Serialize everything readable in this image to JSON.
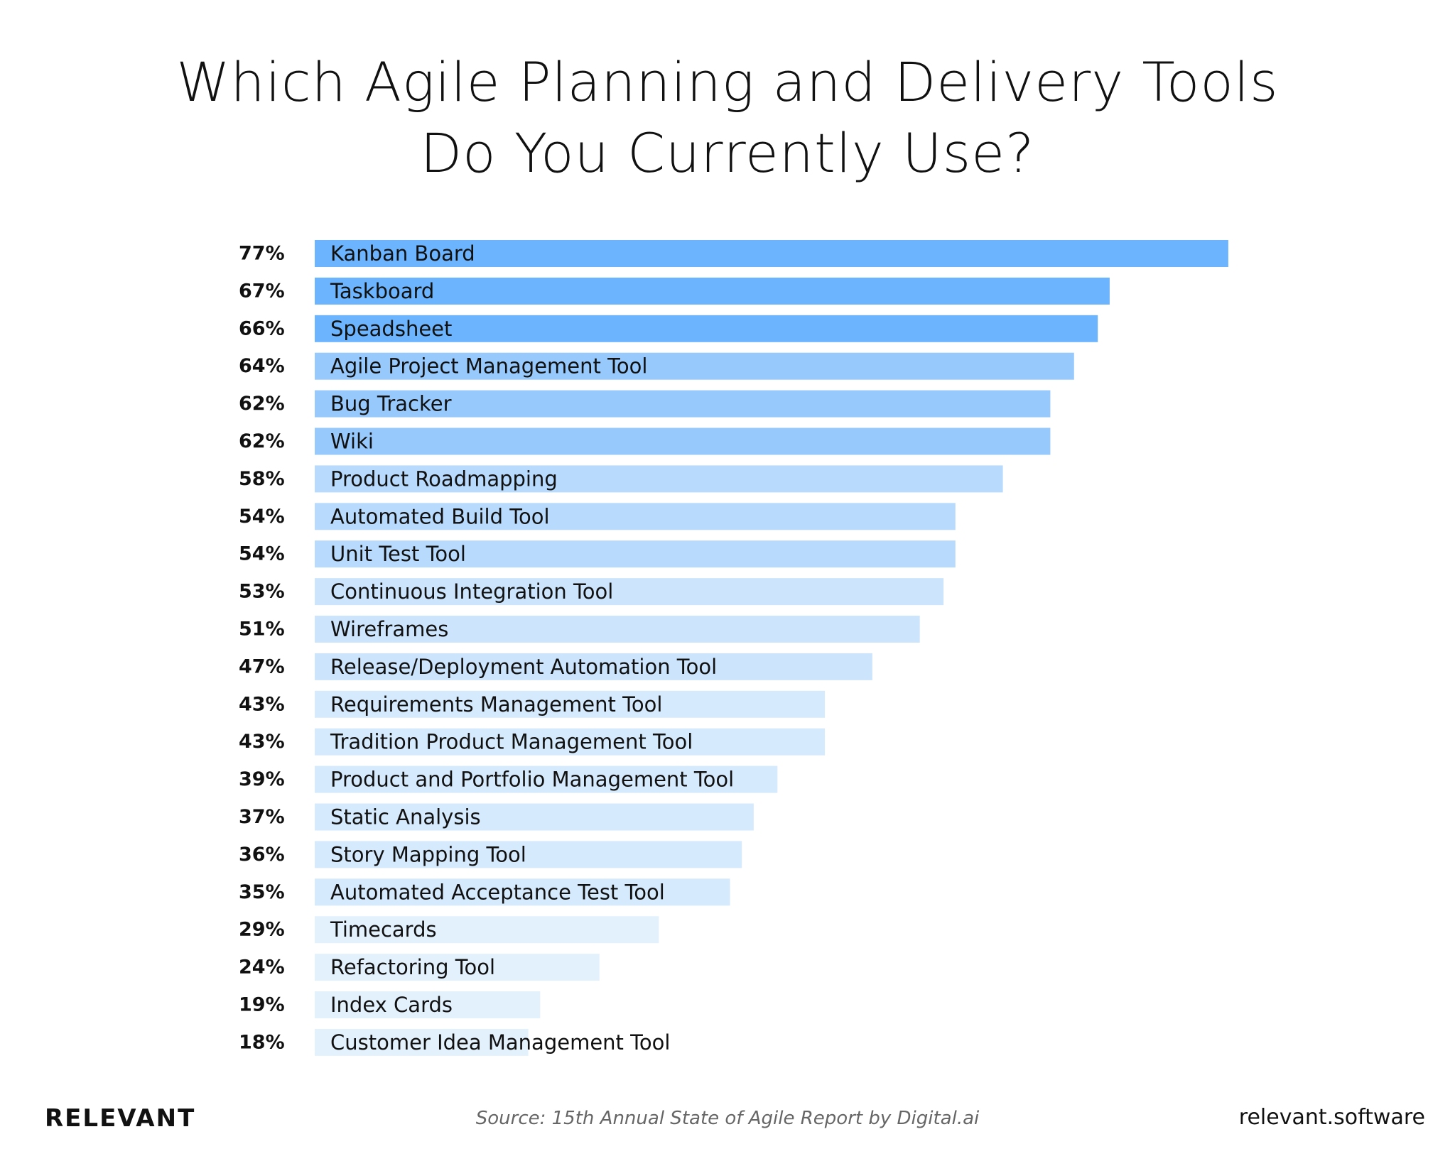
{
  "chart_data": {
    "type": "bar",
    "orientation": "horizontal",
    "title_lines": [
      "Which Agile Planning and Delivery Tools",
      "Do You Currently Use?"
    ],
    "categories": [
      "Kanban Board",
      "Taskboard",
      "Speadsheet",
      "Agile Project Management Tool",
      "Bug Tracker",
      "Wiki",
      "Product Roadmapping",
      "Automated Build Tool",
      "Unit Test Tool",
      "Continuous Integration Tool",
      "Wireframes",
      "Release/Deployment Automation Tool",
      "Requirements Management Tool",
      "Tradition Product Management Tool",
      "Product and Portfolio Management Tool",
      "Static Analysis",
      "Story Mapping Tool",
      "Automated Acceptance Test Tool",
      "Timecards",
      "Refactoring Tool",
      "Index Cards",
      "Customer Idea Management Tool"
    ],
    "values": [
      77,
      67,
      66,
      64,
      62,
      62,
      58,
      54,
      54,
      53,
      51,
      47,
      43,
      43,
      39,
      37,
      36,
      35,
      29,
      24,
      19,
      18
    ],
    "value_labels": [
      "77%",
      "67%",
      "66%",
      "64%",
      "62%",
      "62%",
      "58%",
      "54%",
      "54%",
      "53%",
      "51%",
      "47%",
      "43%",
      "43%",
      "39%",
      "37%",
      "36%",
      "35%",
      "29%",
      "24%",
      "19%",
      "18%"
    ],
    "value_unit": "%",
    "xlim": [
      0,
      80
    ],
    "grid": false,
    "legend": "none",
    "colors": [
      "#6cb4fd",
      "#6cb4fd",
      "#6cb4fd",
      "#97c9fd",
      "#97c9fd",
      "#97c9fd",
      "#b8dafd",
      "#b8dafd",
      "#b8dafd",
      "#cce5fd",
      "#cce5fd",
      "#cce5fd",
      "#d6eafd",
      "#d6eafd",
      "#d6eafd",
      "#d6eafd",
      "#d6eafd",
      "#d6eafd",
      "#e3f1fd",
      "#e3f1fd",
      "#e3f1fd",
      "#e3f1fd"
    ]
  },
  "footer": {
    "brand": "RELEVANT",
    "source": "Source: 15th Annual State of Agile Report by Digital.ai",
    "url": "relevant.software"
  }
}
